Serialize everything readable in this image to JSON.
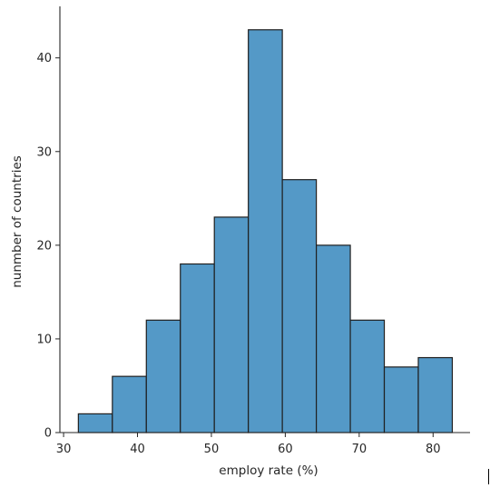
{
  "chart_data": {
    "type": "bar",
    "subtype": "histogram",
    "xlabel": "employ rate (%)",
    "ylabel": "nunmber of countries",
    "xlim": [
      29.5,
      85
    ],
    "ylim": [
      0,
      45.5
    ],
    "x_ticks": [
      30,
      40,
      50,
      60,
      70,
      80
    ],
    "y_ticks": [
      0,
      10,
      20,
      30,
      40
    ],
    "bins": [
      {
        "start": 32.0,
        "end": 36.6,
        "count": 2
      },
      {
        "start": 36.6,
        "end": 41.2,
        "count": 6
      },
      {
        "start": 41.2,
        "end": 45.8,
        "count": 12
      },
      {
        "start": 45.8,
        "end": 50.4,
        "count": 18
      },
      {
        "start": 50.4,
        "end": 55.0,
        "count": 23
      },
      {
        "start": 55.0,
        "end": 59.6,
        "count": 43
      },
      {
        "start": 59.6,
        "end": 64.2,
        "count": 27
      },
      {
        "start": 64.2,
        "end": 68.8,
        "count": 20
      },
      {
        "start": 68.8,
        "end": 73.4,
        "count": 12
      },
      {
        "start": 73.4,
        "end": 78.0,
        "count": 7
      },
      {
        "start": 78.0,
        "end": 82.6,
        "count": 8
      }
    ],
    "bar_color": "#5499c7",
    "grid": false,
    "spines": [
      "left",
      "bottom"
    ]
  }
}
